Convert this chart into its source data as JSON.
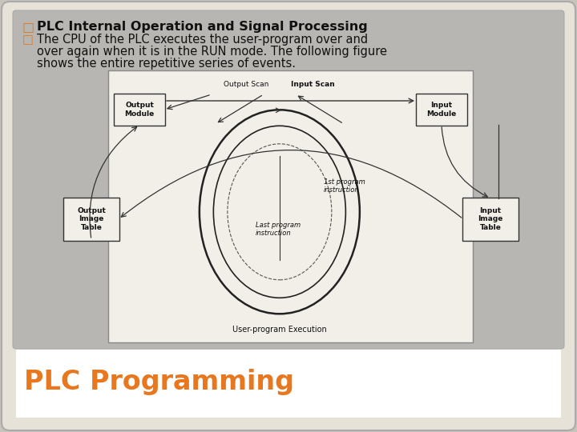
{
  "outer_bg": "#c8c4bc",
  "slide_bg": "#e8e4dc",
  "content_bg": "#b8b8b8",
  "footer_bg": "#ffffff",
  "bullet_color": "#e07820",
  "title_text": "PLC Internal Operation and Signal Processing",
  "body_line1": "The CPU of the PLC executes the user-program over and",
  "body_line2": "over again when it is in the RUN mode. The following figure",
  "body_line3": "shows the entire repetitive series of events.",
  "footer_text": "PLC Programming",
  "footer_color": "#e87820",
  "text_color": "#111111",
  "diagram_bg": "#f0ede8",
  "font_size_title": 11.5,
  "font_size_body": 10.5,
  "font_size_footer": 24,
  "font_size_diag": 6.5
}
